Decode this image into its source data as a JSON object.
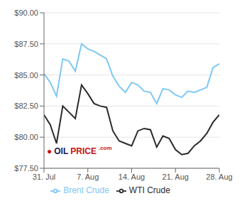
{
  "chart_data": {
    "type": "line",
    "x": [
      0,
      1,
      2,
      3,
      4,
      5,
      6,
      7,
      8,
      9,
      10,
      11,
      12,
      13,
      14,
      15,
      16,
      17,
      18,
      19,
      20,
      21,
      22,
      23,
      24,
      25,
      26,
      27,
      28
    ],
    "series": [
      {
        "name": "Brent Crude",
        "color": "#7ec8f5",
        "values": [
          85.1,
          84.4,
          83.3,
          86.3,
          86.1,
          85.3,
          87.5,
          87.1,
          86.9,
          86.6,
          86.3,
          84.9,
          84.1,
          83.6,
          84.4,
          84.2,
          83.7,
          83.6,
          82.7,
          83.9,
          83.8,
          83.4,
          83.2,
          83.7,
          83.6,
          83.8,
          84.0,
          85.6,
          85.9
        ]
      },
      {
        "name": "WTI Crude",
        "color": "#2a2a2a",
        "values": [
          81.8,
          81.0,
          79.5,
          82.5,
          82.0,
          81.5,
          84.2,
          83.5,
          82.7,
          82.5,
          82.4,
          80.5,
          79.7,
          79.5,
          79.3,
          80.5,
          80.7,
          80.6,
          79.2,
          80.1,
          79.9,
          79.0,
          78.6,
          78.7,
          79.3,
          79.7,
          80.3,
          81.2,
          81.8
        ]
      }
    ],
    "xlim": [
      0,
      28
    ],
    "xticks": [
      {
        "value": 0,
        "label": "31. Jul"
      },
      {
        "value": 7,
        "label": "7. Aug"
      },
      {
        "value": 14,
        "label": "14. Aug"
      },
      {
        "value": 21,
        "label": "21. Aug"
      },
      {
        "value": 28,
        "label": "28. Aug"
      }
    ],
    "ylim": [
      77.5,
      90.0
    ],
    "yticks": [
      {
        "value": 77.5,
        "label": "$77.50"
      },
      {
        "value": 80.0,
        "label": "$80.00"
      },
      {
        "value": 82.5,
        "label": "$82.50"
      },
      {
        "value": 85.0,
        "label": "$85.00"
      },
      {
        "value": 87.5,
        "label": "$87.50"
      },
      {
        "value": 90.0,
        "label": "$90.00"
      }
    ],
    "grid": true,
    "legend": "bottom",
    "annotations": [
      {
        "text": "●",
        "color": "#cc1111"
      },
      {
        "text": "OIL",
        "color": "#1a1a4a"
      },
      {
        "text": "PRICE",
        "color": "#cc1111"
      },
      {
        "text": ".com",
        "color": "#cc1111"
      }
    ]
  }
}
